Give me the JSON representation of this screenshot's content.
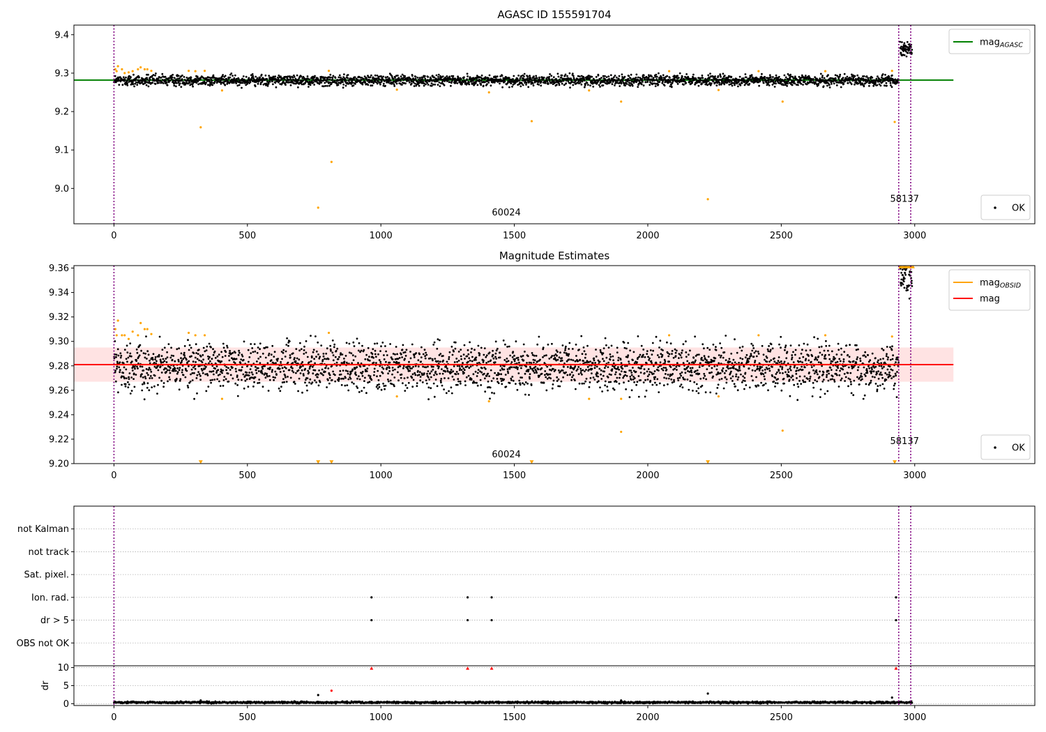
{
  "colors": {
    "ok_points": "#000000",
    "outlier_points": "#ffa500",
    "agasc_line": "#008000",
    "obsid_line": "#ffa500",
    "mag_line": "#ff0000",
    "mag_band": "#ffcccc",
    "obs_boundary": "#800080",
    "dr_limit_marker": "#ff0000",
    "grid": "#b0b0b0"
  },
  "chart_data": [
    {
      "type": "scatter",
      "title": "AGASC ID 155591704",
      "xlabel": "",
      "ylabel": "",
      "xlim": [
        -150,
        3450
      ],
      "ylim": [
        8.908,
        9.425
      ],
      "xticks": [
        0,
        500,
        1000,
        1500,
        2000,
        2500,
        3000
      ],
      "yticks": [
        9.0,
        9.1,
        9.2,
        9.3,
        9.4
      ],
      "ytick_labels": [
        "9.0",
        "9.1",
        "9.2",
        "9.3",
        "9.4"
      ],
      "grid": false,
      "legends": [
        {
          "placement": "top-right",
          "entries": [
            {
              "label_main": "mag",
              "label_sub": "AGASC",
              "color_key": "agasc_line"
            }
          ]
        },
        {
          "placement": "bottom-right",
          "entries": [
            {
              "label_main": "OK",
              "label_sub": "",
              "color_key": "ok_points"
            }
          ]
        }
      ],
      "obs_boundaries": [
        0,
        2940,
        2985
      ],
      "obsid_annotations": [
        {
          "label": "60024",
          "x": 1470,
          "y": 8.93
        },
        {
          "label": "58137",
          "x": 2962,
          "y": 8.965
        }
      ],
      "series": [
        {
          "name": "mag_AGASC",
          "kind": "hline",
          "y": 9.282,
          "x_range": [
            -150,
            3145
          ],
          "color_key": "agasc_line"
        },
        {
          "name": "OK",
          "kind": "band_noise",
          "segments": [
            {
              "x_range": [
                0,
                2940
              ],
              "center": 9.281,
              "spread": 0.007,
              "count": 2700
            },
            {
              "x_range": [
                2945,
                2990
              ],
              "center": 9.362,
              "spread": 0.009,
              "count": 60
            }
          ],
          "color_key": "ok_points"
        },
        {
          "name": "excluded",
          "kind": "points",
          "color_key": "outlier_points",
          "points": [
            [
              5,
              9.31
            ],
            [
              10,
              9.305
            ],
            [
              15,
              9.318
            ],
            [
              30,
              9.31
            ],
            [
              40,
              9.3
            ],
            [
              55,
              9.302
            ],
            [
              70,
              9.305
            ],
            [
              90,
              9.31
            ],
            [
              100,
              9.315
            ],
            [
              115,
              9.31
            ],
            [
              125,
              9.31
            ],
            [
              140,
              9.306
            ],
            [
              280,
              9.306
            ],
            [
              305,
              9.305
            ],
            [
              325,
              9.159
            ],
            [
              340,
              9.306
            ],
            [
              405,
              9.255
            ],
            [
              765,
              8.95
            ],
            [
              805,
              9.306
            ],
            [
              815,
              9.069
            ],
            [
              1060,
              9.257
            ],
            [
              1405,
              9.25
            ],
            [
              1565,
              9.175
            ],
            [
              1780,
              9.255
            ],
            [
              1900,
              9.226
            ],
            [
              2080,
              9.305
            ],
            [
              2225,
              8.972
            ],
            [
              2265,
              9.256
            ],
            [
              2415,
              9.305
            ],
            [
              2505,
              9.226
            ],
            [
              2665,
              9.305
            ],
            [
              2915,
              9.306
            ],
            [
              2925,
              9.173
            ]
          ]
        }
      ]
    },
    {
      "type": "scatter",
      "title": "Magnitude Estimates",
      "xlabel": "",
      "ylabel": "",
      "xlim": [
        -150,
        3450
      ],
      "ylim": [
        9.2,
        9.362
      ],
      "xticks": [
        0,
        500,
        1000,
        1500,
        2000,
        2500,
        3000
      ],
      "yticks": [
        9.2,
        9.22,
        9.24,
        9.26,
        9.28,
        9.3,
        9.32,
        9.34,
        9.36
      ],
      "ytick_labels": [
        "9.20",
        "9.22",
        "9.24",
        "9.26",
        "9.28",
        "9.30",
        "9.32",
        "9.34",
        "9.36"
      ],
      "grid": false,
      "legends": [
        {
          "placement": "top-right",
          "entries": [
            {
              "label_main": "mag",
              "label_sub": "OBSID",
              "color_key": "obsid_line"
            },
            {
              "label_main": "mag",
              "label_sub": "",
              "color_key": "mag_line"
            }
          ]
        },
        {
          "placement": "bottom-right",
          "entries": [
            {
              "label_main": "OK",
              "label_sub": "",
              "color_key": "ok_points"
            }
          ]
        }
      ],
      "obs_boundaries": [
        0,
        2940,
        2985
      ],
      "obsid_annotations": [
        {
          "label": "60024",
          "x": 1470,
          "y": 9.205
        },
        {
          "label": "58137",
          "x": 2962,
          "y": 9.216
        }
      ],
      "series": [
        {
          "name": "mag band",
          "kind": "hband",
          "y_range": [
            9.267,
            9.295
          ],
          "x_range": [
            -150,
            3145
          ],
          "color_key": "mag_band"
        },
        {
          "name": "OK",
          "kind": "band_noise",
          "segments": [
            {
              "x_range": [
                0,
                2940
              ],
              "center": 9.279,
              "spread": 0.0095,
              "count": 2700
            },
            {
              "x_range": [
                2945,
                2990
              ],
              "center": 9.355,
              "spread": 0.008,
              "count": 60
            }
          ],
          "color_key": "ok_points"
        },
        {
          "name": "excluded",
          "kind": "points",
          "color_key": "outlier_points",
          "points": [
            [
              5,
              9.31
            ],
            [
              10,
              9.305
            ],
            [
              15,
              9.317
            ],
            [
              30,
              9.305
            ],
            [
              40,
              9.305
            ],
            [
              55,
              9.302
            ],
            [
              70,
              9.308
            ],
            [
              90,
              9.305
            ],
            [
              100,
              9.315
            ],
            [
              115,
              9.31
            ],
            [
              125,
              9.31
            ],
            [
              140,
              9.306
            ],
            [
              280,
              9.307
            ],
            [
              305,
              9.305
            ],
            [
              340,
              9.305
            ],
            [
              405,
              9.253
            ],
            [
              805,
              9.307
            ],
            [
              1060,
              9.255
            ],
            [
              1405,
              9.251
            ],
            [
              1780,
              9.253
            ],
            [
              1900,
              9.253
            ],
            [
              1900,
              9.226
            ],
            [
              2080,
              9.305
            ],
            [
              2265,
              9.255
            ],
            [
              2415,
              9.305
            ],
            [
              2505,
              9.227
            ],
            [
              2665,
              9.305
            ],
            [
              2915,
              9.304
            ]
          ]
        },
        {
          "name": "clipped below",
          "kind": "triangles_down",
          "color_key": "outlier_points",
          "points": [
            [
              325,
              9.201
            ],
            [
              765,
              9.201
            ],
            [
              815,
              9.201
            ],
            [
              1565,
              9.201
            ],
            [
              2225,
              9.201
            ],
            [
              2925,
              9.201
            ]
          ]
        },
        {
          "name": "clipped above",
          "kind": "triangles_up",
          "color_key": "outlier_points",
          "points": [
            [
              2945,
              9.361
            ],
            [
              2952,
              9.361
            ],
            [
              2958,
              9.361
            ],
            [
              2964,
              9.361
            ],
            [
              2970,
              9.361
            ],
            [
              2976,
              9.361
            ],
            [
              2982,
              9.361
            ],
            [
              2988,
              9.361
            ],
            [
              2994,
              9.361
            ]
          ]
        },
        {
          "name": "mag_OBSID",
          "kind": "step",
          "x_range": [
            0,
            2940
          ],
          "y": 9.281,
          "color_key": "obsid_line"
        },
        {
          "name": "mag",
          "kind": "hline",
          "y": 9.281,
          "x_range": [
            -150,
            3145
          ],
          "color_key": "mag_line"
        }
      ]
    },
    {
      "type": "scatter",
      "title": "",
      "xlabel": "",
      "ylabel": "",
      "xlim": [
        -150,
        3450
      ],
      "ylim": [
        0,
        7
      ],
      "xticks": [],
      "yticks": [
        1,
        2,
        3,
        4,
        5,
        6
      ],
      "ytick_labels": [
        "OBS not OK",
        "dr > 5",
        "Ion. rad.",
        "Sat. pixel.",
        "not track",
        "not Kalman"
      ],
      "grid": true,
      "legends": [],
      "obs_boundaries": [
        0,
        2940,
        2985
      ],
      "obsid_annotations": [],
      "series": [
        {
          "name": "Ion. rad.",
          "kind": "points",
          "color_key": "ok_points",
          "points": [
            [
              965,
              3
            ],
            [
              1325,
              3
            ],
            [
              1415,
              3
            ],
            [
              2930,
              3
            ]
          ]
        },
        {
          "name": "dr > 5",
          "kind": "points",
          "color_key": "ok_points",
          "points": [
            [
              965,
              2
            ],
            [
              1325,
              2
            ],
            [
              1415,
              2
            ],
            [
              2930,
              2
            ]
          ]
        }
      ]
    },
    {
      "type": "scatter",
      "title": "",
      "xlabel": "",
      "ylabel": "dr",
      "xlim": [
        -150,
        3450
      ],
      "ylim": [
        -0.5,
        10.5
      ],
      "xticks": [
        0,
        500,
        1000,
        1500,
        2000,
        2500,
        3000
      ],
      "yticks": [
        0,
        5,
        10
      ],
      "ytick_labels": [
        "0",
        "5",
        "10"
      ],
      "grid": true,
      "legends": [],
      "obs_boundaries": [
        0,
        2940,
        2985
      ],
      "obsid_annotations": [],
      "series": [
        {
          "name": "dr",
          "kind": "band_noise",
          "segments": [
            {
              "x_range": [
                0,
                2990
              ],
              "center": 0.35,
              "spread": 0.13,
              "count": 2200
            }
          ],
          "color_key": "ok_points"
        },
        {
          "name": "dr scattered",
          "kind": "points",
          "color_key": "ok_points",
          "points": [
            [
              325,
              0.9
            ],
            [
              765,
              2.4
            ],
            [
              1900,
              0.9
            ],
            [
              2225,
              2.8
            ],
            [
              2915,
              1.7
            ]
          ]
        },
        {
          "name": "dr flagged",
          "kind": "points",
          "color_key": "dr_limit_marker",
          "points": [
            [
              815,
              3.6
            ]
          ]
        },
        {
          "name": "dr above limit",
          "kind": "triangles_up",
          "color_key": "dr_limit_marker",
          "points": [
            [
              965,
              9.8
            ],
            [
              1325,
              9.8
            ],
            [
              1415,
              9.8
            ],
            [
              2930,
              9.8
            ]
          ]
        }
      ]
    }
  ]
}
